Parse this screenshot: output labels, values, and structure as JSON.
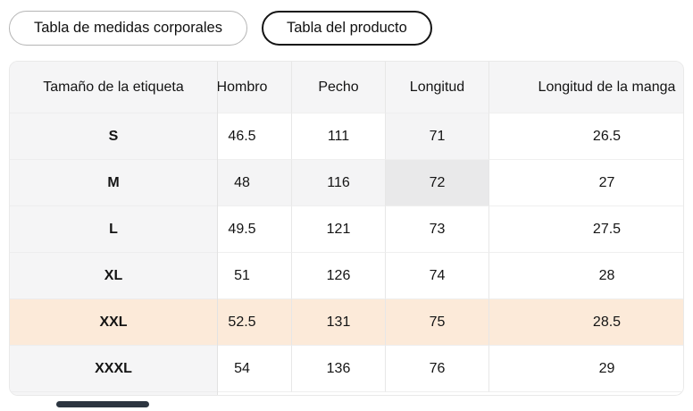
{
  "tabs": {
    "body_measurements": "Tabla de medidas corporales",
    "product_table": "Tabla del producto",
    "active_tab": "Tabla del producto"
  },
  "table": {
    "headers": [
      "Tamaño de la etiqueta",
      "Hombro",
      "Pecho",
      "Longitud",
      "Longitud de la manga"
    ],
    "rows": [
      {
        "size": "S",
        "hombro": "46.5",
        "pecho": "111",
        "longitud": "71",
        "manga": "26.5"
      },
      {
        "size": "M",
        "hombro": "48",
        "pecho": "116",
        "longitud": "72",
        "manga": "27"
      },
      {
        "size": "L",
        "hombro": "49.5",
        "pecho": "121",
        "longitud": "73",
        "manga": "27.5"
      },
      {
        "size": "XL",
        "hombro": "51",
        "pecho": "126",
        "longitud": "74",
        "manga": "28"
      },
      {
        "size": "XXL",
        "hombro": "52.5",
        "pecho": "131",
        "longitud": "75",
        "manga": "28.5"
      },
      {
        "size": "XXXL",
        "hombro": "54",
        "pecho": "136",
        "longitud": "76",
        "manga": "29"
      }
    ],
    "state": {
      "highlighted_row": "XXL",
      "hovered_cell": {
        "row": "M",
        "column": "Longitud"
      }
    }
  },
  "colors": {
    "row_highlight": "#fcead9",
    "hovered_cell": "#e9e9ea",
    "crosshair_highlight": "#f4f4f5",
    "header_bg": "#f5f5f6",
    "active_tab_border": "#141414",
    "scrollbar_thumb": "#2c3540"
  }
}
